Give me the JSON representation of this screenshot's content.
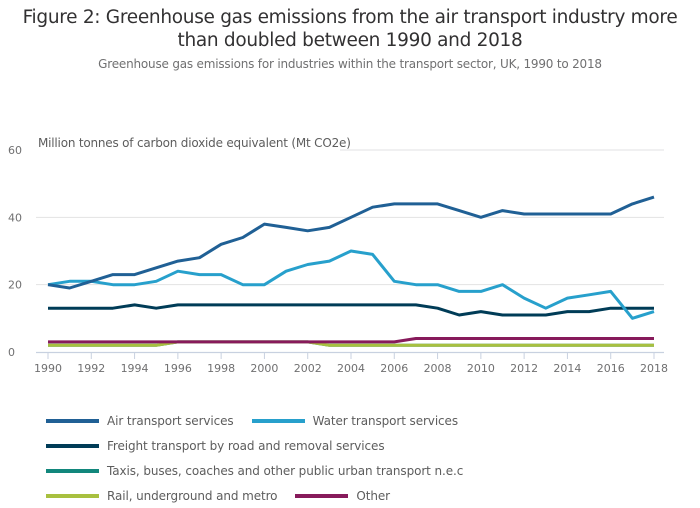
{
  "title_line1": "Figure 2: Greenhouse gas emissions from the air transport industry more",
  "title_line2": "than doubled between 1990 and 2018",
  "subtitle": "Greenhouse gas emissions for industries within the transport sector, UK, 1990 to 2018",
  "chart_data": {
    "type": "line",
    "title": "Figure 2: Greenhouse gas emissions from the air transport industry more than doubled between 1990 and 2018",
    "subtitle": "Greenhouse gas emissions for industries within the transport sector, UK, 1990 to 2018",
    "ylabel": "Million tonnes of carbon dioxide equivalent (Mt CO2e)",
    "xlabel": "",
    "ylim": [
      0,
      60
    ],
    "xlim": [
      1990,
      2018
    ],
    "yticks": [
      0,
      20,
      40,
      60
    ],
    "xticks": [
      1990,
      1992,
      1994,
      1996,
      1998,
      2000,
      2002,
      2004,
      2006,
      2008,
      2010,
      2012,
      2014,
      2016,
      2018
    ],
    "grid": "horizontal",
    "legend_position": "bottom",
    "x": [
      1990,
      1991,
      1992,
      1993,
      1994,
      1995,
      1996,
      1997,
      1998,
      1999,
      2000,
      2001,
      2002,
      2003,
      2004,
      2005,
      2006,
      2007,
      2008,
      2009,
      2010,
      2011,
      2012,
      2013,
      2014,
      2015,
      2016,
      2017,
      2018
    ],
    "series": [
      {
        "name": "Taxis, buses, coaches and other public urban transport n.e.c",
        "color": "#12877c",
        "values": [
          2,
          2,
          2,
          2,
          2,
          2,
          3,
          3,
          3,
          3,
          3,
          3,
          3,
          2,
          2,
          2,
          2,
          2,
          2,
          2,
          2,
          2,
          2,
          2,
          2,
          2,
          2,
          2,
          2
        ]
      },
      {
        "name": "Rail, underground and metro",
        "color": "#a8c03f",
        "values": [
          2,
          2,
          2,
          2,
          2,
          2,
          3,
          3,
          3,
          3,
          3,
          3,
          3,
          2,
          2,
          2,
          2,
          2,
          2,
          2,
          2,
          2,
          2,
          2,
          2,
          2,
          2,
          2,
          2
        ]
      },
      {
        "name": "Other",
        "color": "#871a5b",
        "values": [
          3,
          3,
          3,
          3,
          3,
          3,
          3,
          3,
          3,
          3,
          3,
          3,
          3,
          3,
          3,
          3,
          3,
          4,
          4,
          4,
          4,
          4,
          4,
          4,
          4,
          4,
          4,
          4,
          4
        ]
      },
      {
        "name": "Freight transport by road and removal services",
        "color": "#003c57",
        "values": [
          13,
          13,
          13,
          13,
          14,
          13,
          14,
          14,
          14,
          14,
          14,
          14,
          14,
          14,
          14,
          14,
          14,
          14,
          13,
          11,
          12,
          11,
          11,
          11,
          12,
          12,
          13,
          13,
          13
        ]
      },
      {
        "name": "Water transport services",
        "color": "#27a0cc",
        "values": [
          20,
          21,
          21,
          20,
          20,
          21,
          24,
          23,
          23,
          20,
          20,
          24,
          26,
          27,
          30,
          29,
          21,
          20,
          20,
          18,
          18,
          20,
          16,
          13,
          16,
          17,
          18,
          10,
          12
        ]
      },
      {
        "name": "Air transport services",
        "color": "#206095",
        "values": [
          20,
          19,
          21,
          23,
          23,
          25,
          27,
          28,
          32,
          34,
          38,
          37,
          36,
          37,
          40,
          43,
          44,
          44,
          44,
          42,
          40,
          42,
          41,
          41,
          41,
          41,
          41,
          44,
          46
        ]
      }
    ]
  },
  "legend": [
    {
      "label": "Air transport services",
      "color": "#206095"
    },
    {
      "label": "Water transport services",
      "color": "#27a0cc"
    },
    {
      "label": "Freight transport by road and removal services",
      "color": "#003c57"
    },
    {
      "label": "Taxis, buses, coaches and other public urban transport n.e.c",
      "color": "#12877c"
    },
    {
      "label": "Rail, underground and metro",
      "color": "#a8c03f"
    },
    {
      "label": "Other",
      "color": "#871a5b"
    }
  ]
}
